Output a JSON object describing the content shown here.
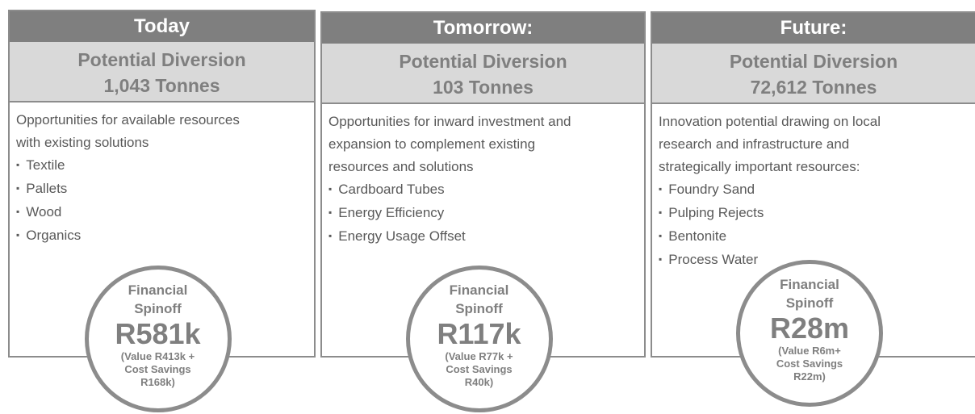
{
  "columns": [
    {
      "header": "Today",
      "title": [
        "Potential Diversion",
        "1,043 Tonnes"
      ],
      "description": [
        "Opportunities for available resources",
        "with existing solutions"
      ],
      "bullets": [
        "Textile",
        "Pallets",
        "Wood",
        "Organics"
      ],
      "circle": {
        "label": [
          "Financial",
          "Spinoff"
        ],
        "amount": "R581k",
        "detail": [
          "(Value R413k +",
          "Cost Savings",
          "R168k)"
        ]
      }
    },
    {
      "header": "Tomorrow:",
      "title": [
        "Potential Diversion",
        "103 Tonnes"
      ],
      "description": [
        "Opportunities for inward investment and",
        "expansion to complement existing",
        "resources and solutions"
      ],
      "bullets": [
        "Cardboard Tubes",
        "Energy Efficiency",
        "Energy Usage Offset"
      ],
      "circle": {
        "label": [
          "Financial",
          "Spinoff"
        ],
        "amount": "R117k",
        "detail": [
          "(Value R77k +",
          "Cost Savings",
          "R40k)"
        ]
      }
    },
    {
      "header": "Future:",
      "title": [
        "Potential Diversion",
        "72,612 Tonnes"
      ],
      "description": [
        "Innovation potential drawing on local",
        "research and infrastructure and",
        "strategically important resources:"
      ],
      "bullets": [
        "Foundry Sand",
        "Pulping Rejects",
        "Bentonite",
        "Process Water"
      ],
      "circle": {
        "label": [
          "Financial",
          "Spinoff"
        ],
        "amount": "R28m",
        "detail": [
          "(Value R6m+",
          "Cost Savings",
          "R22m)"
        ]
      }
    }
  ]
}
